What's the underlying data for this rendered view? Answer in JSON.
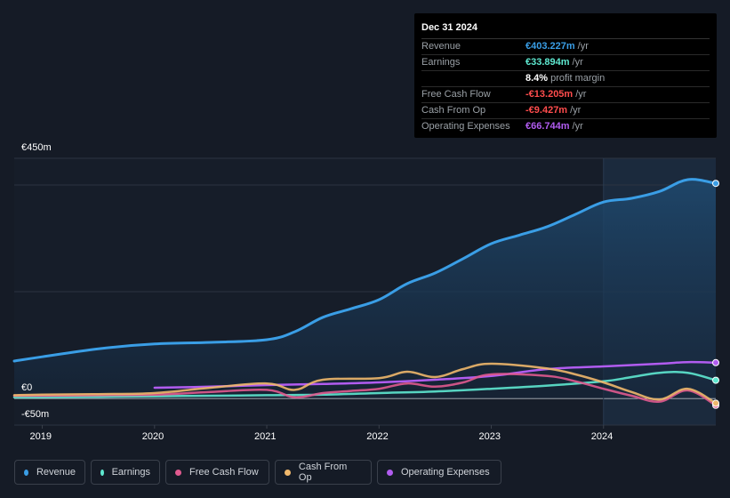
{
  "tooltip": {
    "date": "Dec 31 2024",
    "rows": [
      {
        "label": "Revenue",
        "value": "€403.227m",
        "unit": "/yr",
        "color": "#3a9ee6"
      },
      {
        "label": "Earnings",
        "value": "€33.894m",
        "unit": "/yr",
        "color": "#5ee8d0"
      },
      {
        "label": "",
        "value": "8.4%",
        "unit": "profit margin",
        "color": "#ffffff"
      },
      {
        "label": "Free Cash Flow",
        "value": "-€13.205m",
        "unit": "/yr",
        "color": "#ff4d4d"
      },
      {
        "label": "Cash From Op",
        "value": "-€9.427m",
        "unit": "/yr",
        "color": "#ff4d4d"
      },
      {
        "label": "Operating Expenses",
        "value": "€66.744m",
        "unit": "/yr",
        "color": "#b15cf0"
      }
    ]
  },
  "axis": {
    "y_top": "€450m",
    "y_zero": "€0",
    "y_bottom": "-€50m",
    "x_ticks": [
      "2019",
      "2020",
      "2021",
      "2022",
      "2023",
      "2024"
    ]
  },
  "legend": [
    {
      "label": "Revenue",
      "color": "#3a9ee6"
    },
    {
      "label": "Earnings",
      "color": "#5ee8d0"
    },
    {
      "label": "Free Cash Flow",
      "color": "#e05a8f"
    },
    {
      "label": "Cash From Op",
      "color": "#f0b86c"
    },
    {
      "label": "Operating Expenses",
      "color": "#b15cf0"
    }
  ],
  "chart_data": {
    "type": "line",
    "ylim": [
      -50,
      450
    ],
    "xlim": [
      2018.75,
      2025.0
    ],
    "grid": true,
    "highlight_from": 2024.0,
    "series": [
      {
        "name": "Revenue",
        "color": "#3a9ee6",
        "area": true,
        "x": [
          2018.75,
          2019.0,
          2019.5,
          2020.0,
          2020.5,
          2021.0,
          2021.25,
          2021.5,
          2021.75,
          2022.0,
          2022.25,
          2022.5,
          2022.75,
          2023.0,
          2023.25,
          2023.5,
          2023.75,
          2024.0,
          2024.25,
          2024.5,
          2024.75,
          2025.0
        ],
        "y": [
          70,
          78,
          93,
          102,
          105,
          110,
          125,
          152,
          168,
          185,
          215,
          235,
          262,
          290,
          306,
          322,
          345,
          368,
          375,
          388,
          410,
          403
        ]
      },
      {
        "name": "Earnings",
        "color": "#5ee8d0",
        "x": [
          2018.75,
          2019.0,
          2019.5,
          2020.0,
          2020.5,
          2021.0,
          2021.5,
          2022.0,
          2022.5,
          2023.0,
          2023.5,
          2024.0,
          2024.25,
          2024.5,
          2024.75,
          2025.0
        ],
        "y": [
          2,
          2,
          3,
          4,
          5,
          6,
          7,
          10,
          13,
          18,
          24,
          32,
          40,
          48,
          48,
          34
        ]
      },
      {
        "name": "Free Cash Flow",
        "color": "#e05a8f",
        "x": [
          2018.75,
          2019.0,
          2019.5,
          2020.0,
          2020.5,
          2021.0,
          2021.25,
          2021.5,
          2021.75,
          2022.0,
          2022.25,
          2022.5,
          2022.75,
          2023.0,
          2023.5,
          2023.75,
          2024.0,
          2024.25,
          2024.5,
          2024.75,
          2025.0
        ],
        "y": [
          5,
          5,
          6,
          7,
          12,
          16,
          2,
          10,
          14,
          18,
          28,
          22,
          30,
          45,
          42,
          32,
          18,
          5,
          -6,
          15,
          -13
        ]
      },
      {
        "name": "Cash From Op",
        "color": "#f0b86c",
        "x": [
          2018.75,
          2019.0,
          2019.5,
          2020.0,
          2020.5,
          2021.0,
          2021.25,
          2021.5,
          2022.0,
          2022.25,
          2022.5,
          2022.75,
          2023.0,
          2023.5,
          2023.75,
          2024.0,
          2024.25,
          2024.5,
          2024.75,
          2025.0
        ],
        "y": [
          6,
          7,
          8,
          10,
          20,
          28,
          16,
          35,
          38,
          50,
          40,
          55,
          65,
          56,
          45,
          30,
          12,
          -2,
          18,
          -9
        ]
      },
      {
        "name": "Operating Expenses",
        "color": "#b15cf0",
        "x": [
          2020.0,
          2020.5,
          2021.0,
          2021.5,
          2022.0,
          2022.5,
          2023.0,
          2023.5,
          2024.0,
          2024.5,
          2024.75,
          2025.0
        ],
        "y": [
          20,
          22,
          25,
          27,
          30,
          35,
          42,
          55,
          60,
          65,
          68,
          67
        ]
      }
    ]
  }
}
